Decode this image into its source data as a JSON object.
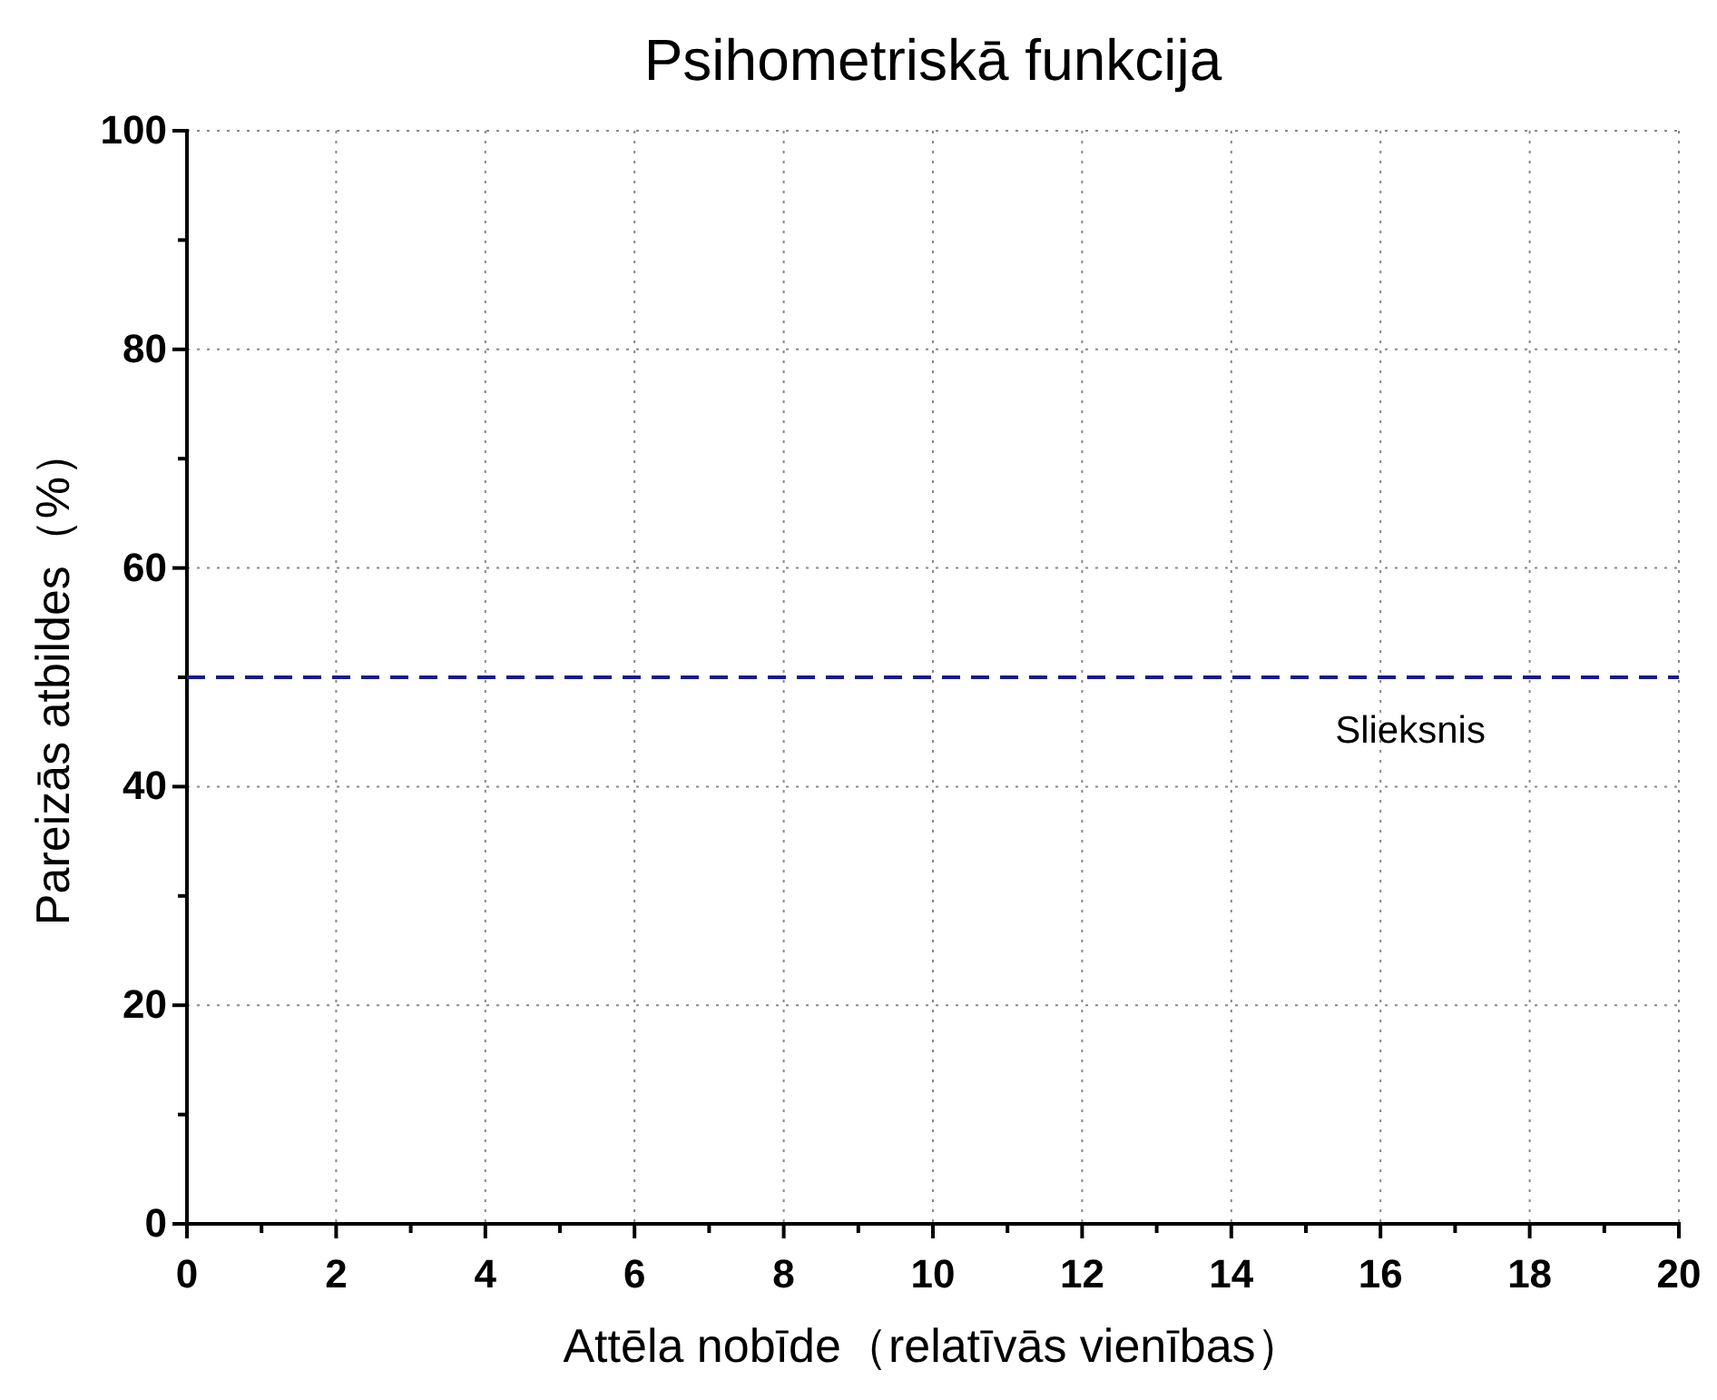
{
  "chart_data": {
    "type": "line",
    "title": "Psihometriskā funkcija",
    "xlabel": "Attēla nobīde（relatīvās vienības）",
    "ylabel": "Pareizās atbildes（%）",
    "xlim": [
      0,
      20
    ],
    "ylim": [
      0,
      100
    ],
    "xticks": [
      0,
      {
        "value": 1,
        "label": null
      },
      2,
      {
        "value": 3,
        "label": null
      },
      4,
      {
        "value": 5,
        "label": null
      },
      6,
      {
        "value": 7,
        "label": null
      },
      8,
      {
        "value": 9,
        "label": null
      },
      10,
      {
        "value": 11,
        "label": null
      },
      12,
      {
        "value": 13,
        "label": null
      },
      14,
      {
        "value": 15,
        "label": null
      },
      16,
      {
        "value": 17,
        "label": null
      },
      18,
      {
        "value": 19,
        "label": null
      },
      20
    ],
    "yticks": [
      0,
      {
        "value": 10,
        "label": null
      },
      20,
      {
        "value": 30,
        "label": null
      },
      40,
      {
        "value": 50,
        "label": null
      },
      60,
      {
        "value": 70,
        "label": null
      },
      80,
      {
        "value": 90,
        "label": null
      },
      100
    ],
    "grid": true,
    "ref_lines": [
      {
        "axis": "y",
        "value": 50,
        "label": "Slieksnis",
        "color": "#1a1a8c",
        "line_style": "dashed"
      }
    ]
  }
}
